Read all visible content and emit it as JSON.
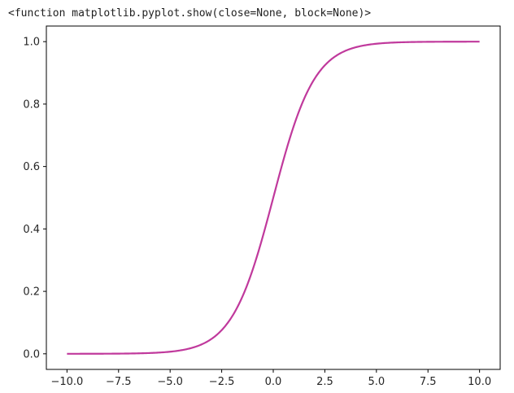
{
  "output_text": "<function matplotlib.pyplot.show(close=None, block=None)>",
  "colors": {
    "line": "#c0399c",
    "axes": "#000000",
    "text": "#262626"
  },
  "chart_data": {
    "type": "line",
    "function": "sigmoid",
    "x_range": [
      -10,
      10
    ],
    "xlim": [
      -11,
      11
    ],
    "ylim": [
      -0.05,
      1.05
    ],
    "x_ticks": [
      -10.0,
      -7.5,
      -5.0,
      -2.5,
      0.0,
      2.5,
      5.0,
      7.5,
      10.0
    ],
    "x_tick_labels": [
      "−10.0",
      "−7.5",
      "−5.0",
      "−2.5",
      "0.0",
      "2.5",
      "5.0",
      "7.5",
      "10.0"
    ],
    "y_ticks": [
      0.0,
      0.2,
      0.4,
      0.6,
      0.8,
      1.0
    ],
    "y_tick_labels": [
      "0.0",
      "0.2",
      "0.4",
      "0.6",
      "0.8",
      "1.0"
    ],
    "grid": false,
    "series": [
      {
        "x": [
          -10,
          -9,
          -8,
          -7,
          -6,
          -5,
          -4,
          -3,
          -2.5,
          -2,
          -1.5,
          -1,
          -0.5,
          0,
          0.5,
          1,
          1.5,
          2,
          2.5,
          3,
          4,
          5,
          6,
          7,
          8,
          9,
          10
        ],
        "y": [
          4.54e-05,
          0.000123,
          0.000335,
          0.000911,
          0.00247,
          0.00669,
          0.018,
          0.0474,
          0.0759,
          0.1192,
          0.1824,
          0.2689,
          0.3775,
          0.5,
          0.6225,
          0.7311,
          0.8176,
          0.8808,
          0.9241,
          0.9526,
          0.982,
          0.9933,
          0.9975,
          0.9991,
          0.9997,
          0.99988,
          0.99995
        ]
      }
    ]
  }
}
